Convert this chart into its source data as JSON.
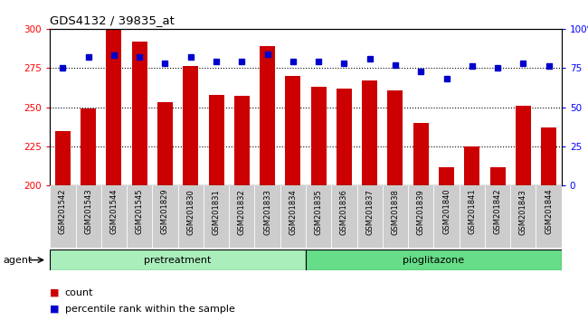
{
  "title": "GDS4132 / 39835_at",
  "categories": [
    "GSM201542",
    "GSM201543",
    "GSM201544",
    "GSM201545",
    "GSM201829",
    "GSM201830",
    "GSM201831",
    "GSM201832",
    "GSM201833",
    "GSM201834",
    "GSM201835",
    "GSM201836",
    "GSM201837",
    "GSM201838",
    "GSM201839",
    "GSM201840",
    "GSM201841",
    "GSM201842",
    "GSM201843",
    "GSM201844"
  ],
  "bar_values": [
    235,
    249,
    300,
    292,
    253,
    276,
    258,
    257,
    289,
    270,
    263,
    262,
    267,
    261,
    240,
    212,
    225,
    212,
    251,
    237
  ],
  "percentile_values": [
    75,
    82,
    83,
    82,
    78,
    82,
    79,
    79,
    84,
    79,
    79,
    78,
    81,
    77,
    73,
    68,
    76,
    75,
    78,
    76
  ],
  "bar_color": "#cc0000",
  "percentile_color": "#0000cc",
  "ylim_left": [
    200,
    300
  ],
  "ylim_right": [
    0,
    100
  ],
  "yticks_left": [
    200,
    225,
    250,
    275,
    300
  ],
  "yticks_right": [
    0,
    25,
    50,
    75,
    100
  ],
  "hlines": [
    225,
    250,
    275
  ],
  "group1_label": "pretreatment",
  "group2_label": "pioglitazone",
  "group1_color": "#aaeebb",
  "group2_color": "#66dd88",
  "agent_label": "agent",
  "legend_count_label": "count",
  "legend_percentile_label": "percentile rank within the sample",
  "bar_width": 0.6,
  "n_group1": 10,
  "n_group2": 10
}
